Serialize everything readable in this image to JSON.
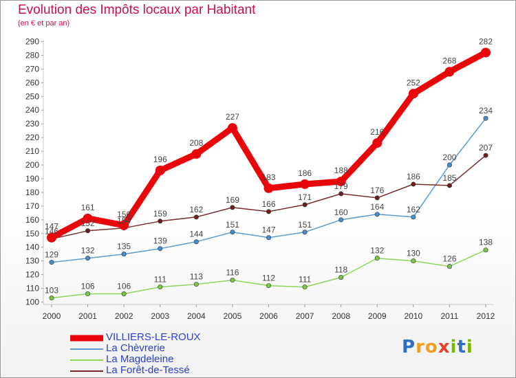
{
  "header": {
    "title": "Evolution des Impôts locaux par Habitant",
    "subtitle": "(en € et par an)"
  },
  "logo": {
    "text": "Proxiti",
    "letters": [
      {
        "ch": "P",
        "color": "#2f6fc0"
      },
      {
        "ch": "r",
        "color": "#f0a020"
      },
      {
        "ch": "o",
        "color": "#f0a020"
      },
      {
        "ch": "x",
        "color": "#e8402a"
      },
      {
        "ch": "i",
        "color": "#7ab800"
      },
      {
        "ch": "t",
        "color": "#2f6fc0"
      },
      {
        "ch": "i",
        "color": "#7ab800"
      }
    ]
  },
  "chart_data": {
    "type": "line",
    "title": "Evolution des Impôts locaux par Habitant",
    "subtitle": "(en € et par an)",
    "xlabel": "",
    "ylabel": "",
    "x": [
      "2000",
      "2001",
      "2002",
      "2003",
      "2004",
      "2005",
      "2006",
      "2007",
      "2008",
      "2009",
      "2010",
      "2011",
      "2012"
    ],
    "yticks": [
      100,
      110,
      120,
      130,
      140,
      150,
      160,
      170,
      180,
      190,
      200,
      210,
      220,
      230,
      240,
      250,
      260,
      270,
      280,
      290
    ],
    "ylim": [
      98,
      293
    ],
    "grid": false,
    "legend_position": "bottom-left",
    "series": [
      {
        "name": "La Magdeleine",
        "color": "#8ed45e",
        "marker": "#7cc547",
        "values": [
          103,
          106,
          106,
          111,
          113,
          116,
          112,
          111,
          118,
          132,
          130,
          126,
          138
        ]
      },
      {
        "name": "La Chèvrerie",
        "color": "#5b9bd0",
        "marker": "#4a8ccc",
        "values": [
          129,
          132,
          135,
          139,
          144,
          151,
          147,
          151,
          160,
          164,
          162,
          200,
          234
        ]
      },
      {
        "name": "La Forêt-de-Tessé",
        "color": "#7a2a2a",
        "marker": "#6b1f1f",
        "values": [
          146,
          152,
          154,
          159,
          162,
          169,
          166,
          171,
          179,
          176,
          186,
          185,
          207
        ]
      },
      {
        "name": "VILLIERS-LE-ROUX",
        "color": "#e8060a",
        "marker": "#e8060a",
        "values": [
          147,
          161,
          156,
          196,
          208,
          227,
          183,
          186,
          188,
          216,
          252,
          268,
          282
        ]
      }
    ],
    "data_labels": [
      {
        "series": "La Magdeleine",
        "labels": [
          "103",
          "106",
          "106",
          "111",
          "113",
          "116",
          "112",
          "111",
          "118",
          "132",
          "130",
          "126",
          "138"
        ]
      },
      {
        "series": "La Chèvrerie",
        "labels": [
          "129",
          "132",
          "135",
          "139",
          "144",
          "151",
          "147",
          "151",
          "160",
          "164",
          "162",
          "200",
          "234"
        ]
      },
      {
        "series": "La Forêt-de-Tessé",
        "labels": [
          "146",
          "152",
          "154",
          "159",
          "162",
          "169",
          "166",
          "171",
          "179",
          "176",
          "186",
          "185",
          "207"
        ]
      },
      {
        "series": "VILLIERS-LE-ROUX",
        "labels": [
          "147",
          "161",
          "156",
          "196",
          "208",
          "227",
          "183",
          "186",
          "188",
          "216",
          "252",
          "268",
          "282"
        ]
      }
    ]
  },
  "legend": {
    "items": [
      {
        "label": "VILLIERS-LE-ROUX",
        "color": "#e8060a",
        "text_color": "#2a3fd6",
        "thick": true
      },
      {
        "label": "La Chèvrerie",
        "color": "#5b9bd0",
        "text_color": "#2a3fd6",
        "thick": false
      },
      {
        "label": "La Magdeleine",
        "color": "#8ed45e",
        "text_color": "#2a3fd6",
        "thick": false
      },
      {
        "label": "La Forêt-de-Tessé",
        "color": "#7a2a2a",
        "text_color": "#2a3fd6",
        "thick": false
      }
    ]
  }
}
